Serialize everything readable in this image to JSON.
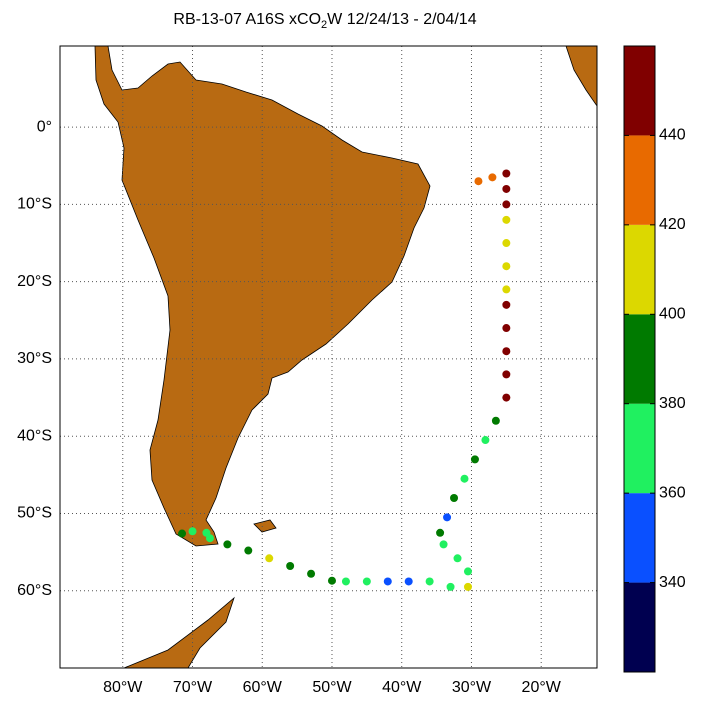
{
  "chart_data": {
    "type": "scatter",
    "title": "RB-13-07 A16S xCO",
    "title_sub": "2",
    "title_end": "W 12/24/13 - 2/04/14",
    "xlim": [
      -89,
      -12
    ],
    "ylim": [
      -70,
      10.5
    ],
    "xticks": [
      {
        "value": -80,
        "label": "80°W"
      },
      {
        "value": -70,
        "label": "70°W"
      },
      {
        "value": -60,
        "label": "60°W"
      },
      {
        "value": -50,
        "label": "50°W"
      },
      {
        "value": -40,
        "label": "40°W"
      },
      {
        "value": -30,
        "label": "30°W"
      },
      {
        "value": -20,
        "label": "20°W"
      }
    ],
    "yticks": [
      {
        "value": 0,
        "label": "0°"
      },
      {
        "value": -10,
        "label": "10°S"
      },
      {
        "value": -20,
        "label": "20°S"
      },
      {
        "value": -30,
        "label": "30°S"
      },
      {
        "value": -40,
        "label": "40°S"
      },
      {
        "value": -50,
        "label": "50°S"
      },
      {
        "value": -60,
        "label": "60°S"
      }
    ],
    "grid": true,
    "x": [
      -29,
      -27,
      -25,
      -25,
      -25,
      -25,
      -25,
      -25,
      -25,
      -25,
      -25,
      -25,
      -25,
      -25,
      -26.5,
      -28,
      -29.5,
      -31,
      -32.5,
      -33.5,
      -34.5,
      -34,
      -32,
      -30.5,
      -30.5,
      -33,
      -36,
      -39,
      -42,
      -45,
      -48,
      -50,
      -53,
      -56,
      -59,
      -62,
      -65,
      -67.5,
      -70,
      -71.5,
      -68
    ],
    "y": [
      -7,
      -6.5,
      -6,
      -8,
      -10,
      -12,
      -15,
      -18,
      -21,
      -23,
      -26,
      -29,
      -32,
      -35,
      -38,
      -40.5,
      -43,
      -45.5,
      -48,
      -50.5,
      -52.5,
      -54,
      -55.8,
      -57.5,
      -59.5,
      -59.5,
      -58.8,
      -58.8,
      -58.8,
      -58.8,
      -58.8,
      -58.7,
      -57.8,
      -56.8,
      -55.8,
      -54.8,
      -54,
      -53.2,
      -52.3,
      -52.6,
      -52.5
    ],
    "values": [
      430,
      432,
      450,
      448,
      446,
      412,
      410,
      408,
      412,
      448,
      450,
      446,
      448,
      445,
      385,
      370,
      388,
      375,
      385,
      350,
      385,
      370,
      372,
      375,
      405,
      372,
      375,
      350,
      352,
      365,
      372,
      385,
      390,
      385,
      405,
      385,
      380,
      372,
      365,
      390,
      372
    ],
    "clim": [
      320,
      460
    ],
    "colorbar_colors": [
      "#000050",
      "#0a50ff",
      "#20f060",
      "#007a00",
      "#dcd800",
      "#e86a00",
      "#800000"
    ],
    "cticks": [
      340,
      360,
      380,
      400,
      420,
      440
    ]
  }
}
